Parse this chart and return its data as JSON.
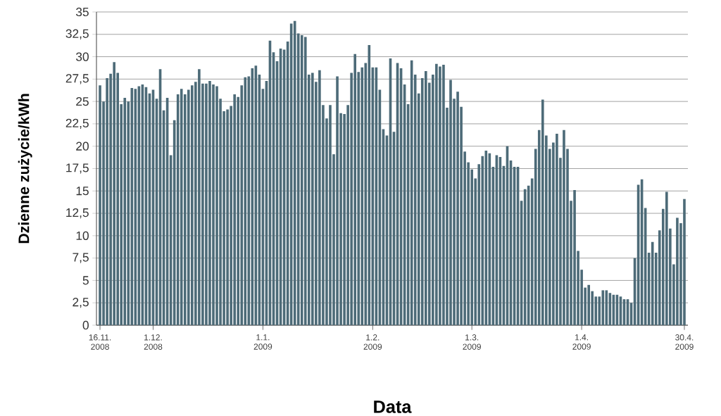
{
  "chart_data": {
    "type": "bar",
    "xlabel": "Data",
    "ylabel": "Dzienne zużycie/kWh",
    "color": "#4d6b78",
    "grid": "y",
    "xlim": [
      "2008-11-15",
      "2009-05-01"
    ],
    "xticks": [
      {
        "value": "2008-11-16",
        "label": "16.11. 2008"
      },
      {
        "value": "2008-12-01",
        "label": "1.12. 2008"
      },
      {
        "value": "2009-01-01",
        "label": "1.1. 2009"
      },
      {
        "value": "2009-02-01",
        "label": "1.2. 2009"
      },
      {
        "value": "2009-03-01",
        "label": "1.3. 2009"
      },
      {
        "value": "2009-04-01",
        "label": "1.4. 2009"
      },
      {
        "value": "2009-04-30",
        "label": "30.4. 2009"
      }
    ],
    "ylim": [
      0,
      35
    ],
    "yticks": [
      0,
      {
        "value": 2.5,
        "label": "2,5"
      },
      5,
      {
        "value": 7.5,
        "label": "7,5"
      },
      10,
      {
        "value": 12.5,
        "label": "12,5"
      },
      15,
      {
        "value": 17.5,
        "label": "17,5"
      },
      20,
      {
        "value": 22.5,
        "label": "22,5"
      },
      25,
      {
        "value": 27.5,
        "label": "27,5"
      },
      30,
      {
        "value": 32.5,
        "label": "32,5"
      },
      35
    ],
    "x": [
      "2008-11-16",
      "2008-11-17",
      "2008-11-18",
      "2008-11-19",
      "2008-11-20",
      "2008-11-21",
      "2008-11-22",
      "2008-11-23",
      "2008-11-24",
      "2008-11-25",
      "2008-11-26",
      "2008-11-27",
      "2008-11-28",
      "2008-11-29",
      "2008-11-30",
      "2008-12-01",
      "2008-12-02",
      "2008-12-03",
      "2008-12-04",
      "2008-12-05",
      "2008-12-06",
      "2008-12-07",
      "2008-12-08",
      "2008-12-09",
      "2008-12-10",
      "2008-12-11",
      "2008-12-12",
      "2008-12-13",
      "2008-12-14",
      "2008-12-15",
      "2008-12-16",
      "2008-12-17",
      "2008-12-18",
      "2008-12-19",
      "2008-12-20",
      "2008-12-21",
      "2008-12-22",
      "2008-12-23",
      "2008-12-24",
      "2008-12-25",
      "2008-12-26",
      "2008-12-27",
      "2008-12-28",
      "2008-12-29",
      "2008-12-30",
      "2008-12-31",
      "2009-01-01",
      "2009-01-02",
      "2009-01-03",
      "2009-01-04",
      "2009-01-05",
      "2009-01-06",
      "2009-01-07",
      "2009-01-08",
      "2009-01-09",
      "2009-01-10",
      "2009-01-11",
      "2009-01-12",
      "2009-01-13",
      "2009-01-14",
      "2009-01-15",
      "2009-01-16",
      "2009-01-17",
      "2009-01-18",
      "2009-01-19",
      "2009-01-20",
      "2009-01-21",
      "2009-01-22",
      "2009-01-23",
      "2009-01-24",
      "2009-01-25",
      "2009-01-26",
      "2009-01-27",
      "2009-01-28",
      "2009-01-29",
      "2009-01-30",
      "2009-01-31",
      "2009-02-01",
      "2009-02-02",
      "2009-02-03",
      "2009-02-04",
      "2009-02-05",
      "2009-02-06",
      "2009-02-07",
      "2009-02-08",
      "2009-02-09",
      "2009-02-10",
      "2009-02-11",
      "2009-02-12",
      "2009-02-13",
      "2009-02-14",
      "2009-02-15",
      "2009-02-16",
      "2009-02-17",
      "2009-02-18",
      "2009-02-19",
      "2009-02-20",
      "2009-02-21",
      "2009-02-22",
      "2009-02-23",
      "2009-02-24",
      "2009-02-25",
      "2009-02-26",
      "2009-02-27",
      "2009-02-28",
      "2009-03-01",
      "2009-03-02",
      "2009-03-03",
      "2009-03-04",
      "2009-03-05",
      "2009-03-06",
      "2009-03-07",
      "2009-03-08",
      "2009-03-09",
      "2009-03-10",
      "2009-03-11",
      "2009-03-12",
      "2009-03-13",
      "2009-03-14",
      "2009-03-15",
      "2009-03-16",
      "2009-03-17",
      "2009-03-18",
      "2009-03-19",
      "2009-03-20",
      "2009-03-21",
      "2009-03-22",
      "2009-03-23",
      "2009-03-24",
      "2009-03-25",
      "2009-03-26",
      "2009-03-27",
      "2009-03-28",
      "2009-03-29",
      "2009-03-30",
      "2009-03-31",
      "2009-04-01",
      "2009-04-02",
      "2009-04-03",
      "2009-04-04",
      "2009-04-05",
      "2009-04-06",
      "2009-04-07",
      "2009-04-08",
      "2009-04-09",
      "2009-04-10",
      "2009-04-11",
      "2009-04-12",
      "2009-04-13",
      "2009-04-14",
      "2009-04-15",
      "2009-04-16",
      "2009-04-17",
      "2009-04-18",
      "2009-04-19",
      "2009-04-20",
      "2009-04-21",
      "2009-04-22",
      "2009-04-23",
      "2009-04-24",
      "2009-04-25",
      "2009-04-26",
      "2009-04-27",
      "2009-04-28",
      "2009-04-29",
      "2009-04-30"
    ],
    "values": [
      26.8,
      25.0,
      27.6,
      28.1,
      29.4,
      28.2,
      24.7,
      25.4,
      25.0,
      26.5,
      26.4,
      26.7,
      26.9,
      26.6,
      25.9,
      26.3,
      25.3,
      28.6,
      24.0,
      25.4,
      19.0,
      22.9,
      25.8,
      26.4,
      25.8,
      26.3,
      26.8,
      27.2,
      28.6,
      27.0,
      27.0,
      27.3,
      26.9,
      26.7,
      25.3,
      23.9,
      24.1,
      24.5,
      25.8,
      25.5,
      26.8,
      27.7,
      27.8,
      28.7,
      29.0,
      28.0,
      26.4,
      27.3,
      31.8,
      30.5,
      29.5,
      30.9,
      30.8,
      31.7,
      33.7,
      34.0,
      32.6,
      32.4,
      32.2,
      28.0,
      28.2,
      27.2,
      28.5,
      24.6,
      23.1,
      24.6,
      19.1,
      27.8,
      23.7,
      23.6,
      24.6,
      28.2,
      30.3,
      28.3,
      28.8,
      29.3,
      31.3,
      28.8,
      28.8,
      26.3,
      21.9,
      21.2,
      29.8,
      21.6,
      29.3,
      28.7,
      26.9,
      24.7,
      29.6,
      28.0,
      25.9,
      27.6,
      28.4,
      27.1,
      28.0,
      29.2,
      28.9,
      29.1,
      24.3,
      27.4,
      25.3,
      26.1,
      24.4,
      19.4,
      18.2,
      17.4,
      16.4,
      18.0,
      18.9,
      19.5,
      19.2,
      17.7,
      19.0,
      18.8,
      17.8,
      20.0,
      18.4,
      17.7,
      17.7,
      13.9,
      15.2,
      15.6,
      16.4,
      19.7,
      21.8,
      25.2,
      21.2,
      19.7,
      20.4,
      21.4,
      18.7,
      21.8,
      19.7,
      13.9,
      15.1,
      8.3,
      6.2,
      4.2,
      4.5,
      3.8,
      3.2,
      3.2,
      3.9,
      3.9,
      3.6,
      3.4,
      3.4,
      3.2,
      2.9,
      2.9,
      2.5,
      7.5,
      15.7,
      16.3,
      13.1,
      8.1,
      9.3,
      8.1,
      10.6,
      13.0,
      14.9,
      10.8,
      6.8,
      12.0,
      11.4,
      14.1
    ]
  }
}
